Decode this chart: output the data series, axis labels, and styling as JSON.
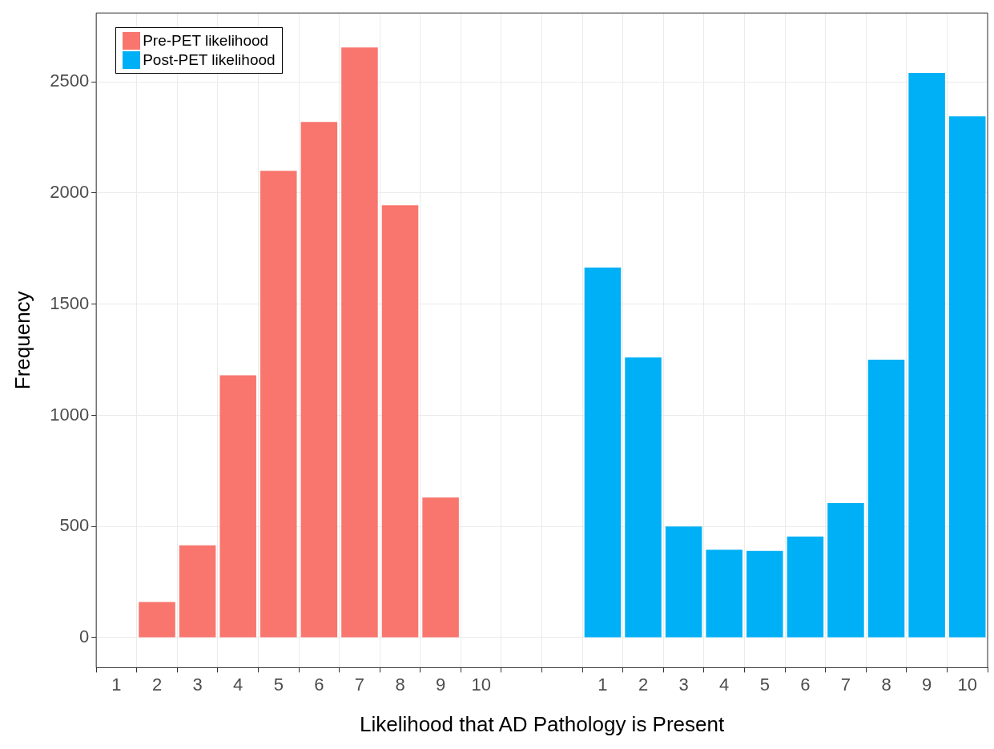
{
  "chart_data": {
    "type": "bar",
    "xlabel": "Likelihood that AD Pathology is Present",
    "ylabel": "Frequency",
    "categories": [
      "1",
      "2",
      "3",
      "4",
      "5",
      "6",
      "7",
      "8",
      "9",
      "10",
      null,
      null,
      "1",
      "2",
      "3",
      "4",
      "5",
      "6",
      "7",
      "8",
      "9",
      "10"
    ],
    "series": [
      {
        "name": "Pre-PET likelihood",
        "color": "#f8766d",
        "values": [
          0,
          160,
          415,
          1180,
          2100,
          2320,
          2655,
          1945,
          630,
          0,
          null,
          null,
          null,
          null,
          null,
          null,
          null,
          null,
          null,
          null,
          null,
          null
        ]
      },
      {
        "name": "Post-PET likelihood",
        "color": "#00b0f6",
        "values": [
          null,
          null,
          null,
          null,
          null,
          null,
          null,
          null,
          null,
          null,
          null,
          null,
          1665,
          1260,
          500,
          395,
          390,
          455,
          605,
          1250,
          2540,
          2345
        ]
      }
    ],
    "ylim": [
      -135,
      2810
    ],
    "yticks": [
      0,
      500,
      1000,
      1500,
      2000,
      2500
    ],
    "grid": true,
    "legend": "top left"
  }
}
